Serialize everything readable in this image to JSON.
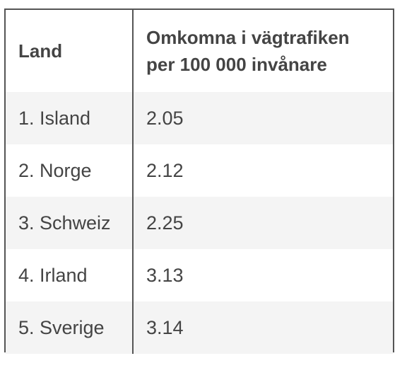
{
  "table": {
    "headers": {
      "land": "Land",
      "value_line1": "Omkomna i vägtrafiken",
      "value_line2": "per 100 000 invånare"
    },
    "rows": [
      {
        "land": "1. Island",
        "value": "2.05"
      },
      {
        "land": "2. Norge",
        "value": "2.12"
      },
      {
        "land": "3. Schweiz",
        "value": "2.25"
      },
      {
        "land": "4. Irland",
        "value": "3.13"
      },
      {
        "land": "5. Sverige",
        "value": "3.14"
      }
    ]
  }
}
